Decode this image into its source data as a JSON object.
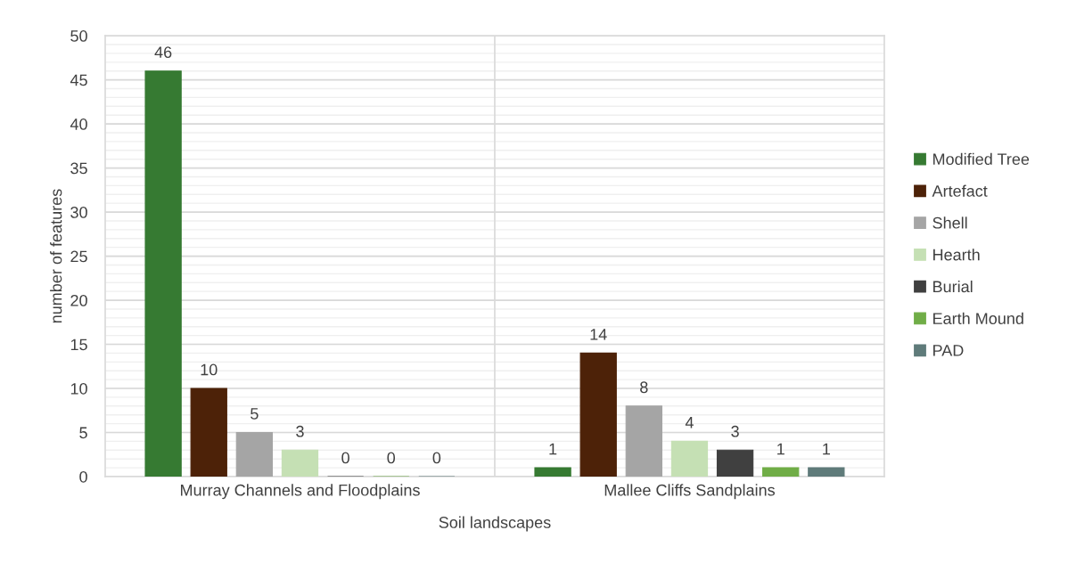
{
  "chart_data": {
    "type": "bar",
    "xlabel": "Soil landscapes",
    "ylabel": "number of features",
    "categories": [
      "Murray Channels and Floodplains",
      "Mallee Cliffs Sandplains"
    ],
    "series": [
      {
        "name": "Modified Tree",
        "color": "#367a32",
        "values": [
          46,
          1
        ]
      },
      {
        "name": "Artefact",
        "color": "#4d2208",
        "values": [
          10,
          14
        ]
      },
      {
        "name": "Shell",
        "color": "#a5a5a5",
        "values": [
          5,
          8
        ]
      },
      {
        "name": "Hearth",
        "color": "#c5e0b4",
        "values": [
          3,
          4
        ]
      },
      {
        "name": "Burial",
        "color": "#404040",
        "values": [
          0,
          3
        ]
      },
      {
        "name": "Earth Mound",
        "color": "#70ad47",
        "values": [
          0,
          1
        ]
      },
      {
        "name": "PAD",
        "color": "#5f7b7a",
        "values": [
          0,
          1
        ]
      }
    ],
    "ylim": [
      0,
      50
    ],
    "yticks": [
      0,
      5,
      10,
      15,
      20,
      25,
      30,
      35,
      40,
      45,
      50
    ],
    "grid": true,
    "legend": "right",
    "data_labels": true
  }
}
